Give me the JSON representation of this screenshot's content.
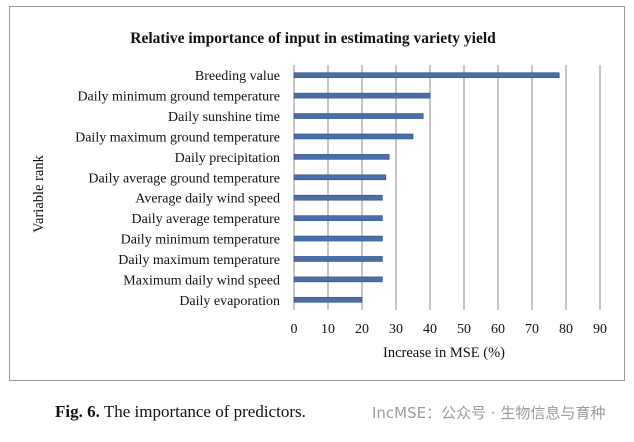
{
  "chart_data": {
    "type": "bar",
    "orientation": "horizontal",
    "title": "Relative importance of input in estimating variety yield",
    "xlabel": "Increase in MSE (%)",
    "ylabel": "Variable rank",
    "xlim": [
      0,
      90
    ],
    "xticks": [
      0,
      10,
      20,
      30,
      40,
      50,
      60,
      70,
      80,
      90
    ],
    "grid": "vertical",
    "bar_color": "#4a6fa8",
    "categories": [
      "Breeding value",
      "Daily minimum ground temperature",
      "Daily sunshine time",
      "Daily maximum ground temperature",
      "Daily precipitation",
      "Daily average ground temperature",
      "Average daily wind speed",
      "Daily average temperature",
      "Daily minimum temperature",
      "Daily maximum temperature",
      "Maximum daily wind speed",
      "Daily evaporation"
    ],
    "values": [
      78,
      40,
      38,
      35,
      28,
      27,
      26,
      26,
      26,
      26,
      26,
      20
    ]
  },
  "caption": {
    "label": "Fig. 6.",
    "text": "The importance of predictors."
  },
  "watermark": "IncMSE：公众号 · 生物信息与育种"
}
